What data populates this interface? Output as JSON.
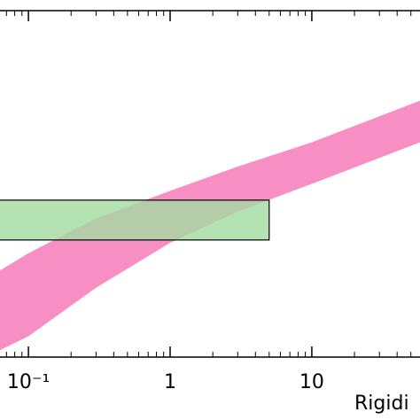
{
  "chart_data": {
    "type": "band",
    "xlabel": "Rigidi",
    "xscale": "log",
    "xlim": [
      0.063,
      58
    ],
    "ylim": [
      0,
      100
    ],
    "xticks": [
      {
        "value": 0.1,
        "label": "10⁻¹"
      },
      1,
      10
    ],
    "xminor_ticks": [
      0.07,
      0.08,
      0.09,
      0.2,
      0.3,
      0.4,
      0.5,
      0.6,
      0.7,
      0.8,
      0.9,
      2,
      3,
      4,
      5,
      6,
      7,
      8,
      9,
      20,
      30,
      40,
      50
    ],
    "band": {
      "color": "#f78fc4",
      "x": [
        0.063,
        0.1,
        0.3,
        1,
        3,
        10,
        58
      ],
      "upper": [
        25,
        30,
        40,
        48,
        55,
        62,
        74
      ],
      "lower": [
        2,
        6,
        20,
        33,
        42,
        50,
        62
      ]
    },
    "box": {
      "color": "#a3dba0",
      "x": [
        0.01,
        5
      ],
      "y": [
        33.8,
        45.3
      ]
    }
  }
}
